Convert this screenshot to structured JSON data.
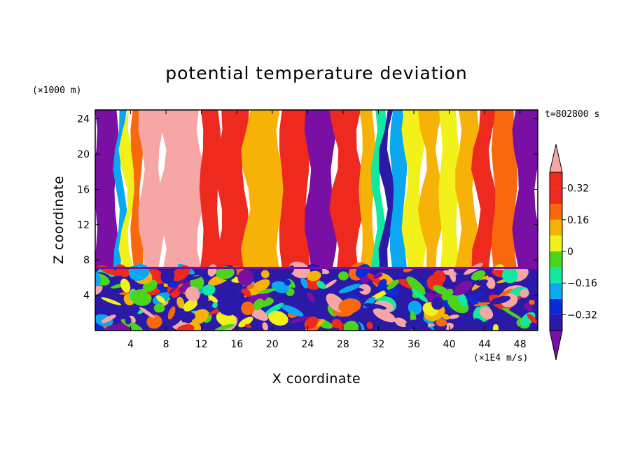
{
  "chart_data": {
    "type": "heatmap",
    "title": "potential temperature deviation",
    "xlabel": "X coordinate",
    "ylabel": "Z coordinate",
    "x_units": "(×1E4 m/s)",
    "y_units": "(×1000 m)",
    "time_label": "t=802800 s",
    "xlim": [
      0,
      50
    ],
    "ylim": [
      0,
      25
    ],
    "x_ticks": [
      4,
      8,
      12,
      16,
      20,
      24,
      28,
      32,
      36,
      40,
      44,
      48
    ],
    "y_ticks": [
      4,
      8,
      12,
      16,
      20,
      24
    ],
    "colorbar": {
      "levels": [
        -0.4,
        -0.32,
        -0.24,
        -0.16,
        -0.08,
        0,
        0.08,
        0.16,
        0.24,
        0.32,
        0.4
      ],
      "tick_labels": [
        "0.32",
        "0.16",
        "0",
        "−0.16",
        "−0.32"
      ],
      "tick_values": [
        0.32,
        0.16,
        0,
        -0.16,
        -0.32
      ],
      "colors": [
        "#7a0fa3",
        "#2b1aa8",
        "#0b2ad8",
        "#0ba7f0",
        "#12e8a0",
        "#4cd41a",
        "#f2f21a",
        "#f7b208",
        "#f7690c",
        "#ee2a1f",
        "#f7a6a6"
      ],
      "extend": "both"
    },
    "upper_layer_columns": [
      {
        "x": [
          0,
          2.4
        ],
        "value": -0.45
      },
      {
        "x": [
          2.4,
          3.2
        ],
        "value": -0.2
      },
      {
        "x": [
          3.2,
          4.2
        ],
        "value": 0.0
      },
      {
        "x": [
          4.2,
          5.2
        ],
        "value": 0.2
      },
      {
        "x": [
          5.2,
          7.5
        ],
        "value": 0.38
      },
      {
        "x": [
          7.5,
          12
        ],
        "value": 0.43
      },
      {
        "x": [
          12,
          14
        ],
        "value": 0.3
      },
      {
        "x": [
          14,
          17
        ],
        "value": 0.24
      },
      {
        "x": [
          17,
          21
        ],
        "value": 0.14
      },
      {
        "x": [
          21,
          24
        ],
        "value": 0.3
      },
      {
        "x": [
          24,
          27
        ],
        "value": -0.45
      },
      {
        "x": [
          27,
          30
        ],
        "value": 0.26
      },
      {
        "x": [
          30,
          31.5
        ],
        "value": 0.12
      },
      {
        "x": [
          31.5,
          32.5
        ],
        "value": -0.1
      },
      {
        "x": [
          32.5,
          33.5
        ],
        "value": -0.35
      },
      {
        "x": [
          33.5,
          35
        ],
        "value": -0.2
      },
      {
        "x": [
          35,
          37
        ],
        "value": 0.06
      },
      {
        "x": [
          37,
          39
        ],
        "value": 0.14
      },
      {
        "x": [
          39,
          41
        ],
        "value": 0.02
      },
      {
        "x": [
          41,
          43
        ],
        "value": 0.12
      },
      {
        "x": [
          43,
          45
        ],
        "value": 0.28
      },
      {
        "x": [
          45,
          47.5
        ],
        "value": 0.18
      },
      {
        "x": [
          47.5,
          50
        ],
        "value": -0.45
      }
    ],
    "lower_layer": {
      "z": [
        0,
        7
      ],
      "description": "turbulent mixed values between -0.4 and 0.4"
    },
    "inversion_z": 7
  }
}
